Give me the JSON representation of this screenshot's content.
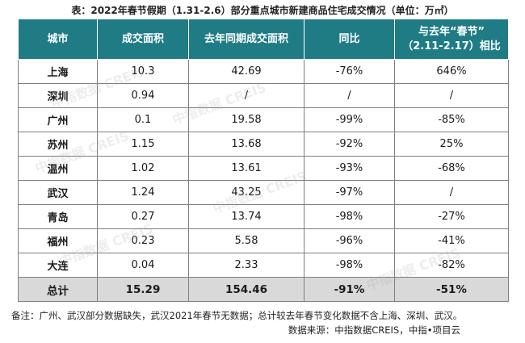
{
  "title": "表：2022年春节假期（1.31-2.6）部分重点城市新建商品住宅成交情况（单位：万㎡）",
  "table": {
    "headers": [
      "城市",
      "成交面积",
      "去年同期成交面积",
      "同比",
      "与去年“春节”",
      "（2.11-2.17）相比"
    ],
    "rows": [
      [
        "上海",
        "10.3",
        "42.69",
        "-76%",
        "646%"
      ],
      [
        "深圳",
        "0.94",
        "/",
        "/",
        "/"
      ],
      [
        "广州",
        "0.1",
        "19.58",
        "-99%",
        "-85%"
      ],
      [
        "苏州",
        "1.15",
        "13.68",
        "-92%",
        "25%"
      ],
      [
        "温州",
        "1.02",
        "13.61",
        "-93%",
        "-68%"
      ],
      [
        "武汉",
        "1.24",
        "43.25",
        "-97%",
        "/"
      ],
      [
        "青岛",
        "0.27",
        "13.74",
        "-98%",
        "-27%"
      ],
      [
        "福州",
        "0.23",
        "5.58",
        "-96%",
        "-41%"
      ],
      [
        "大连",
        "0.04",
        "2.33",
        "-98%",
        "-82%"
      ]
    ],
    "total": [
      "总计",
      "15.29",
      "154.46",
      "-91%",
      "-51%"
    ]
  },
  "watermark": "中指数据 CREIS",
  "note": "备注：广州、武汉部分数据缺失，武汉2021年春节无数据；总计较去年春节变化数据不含上海、深圳、武汉。",
  "source": "数据来源：中指数据CREIS，中指•项目云"
}
